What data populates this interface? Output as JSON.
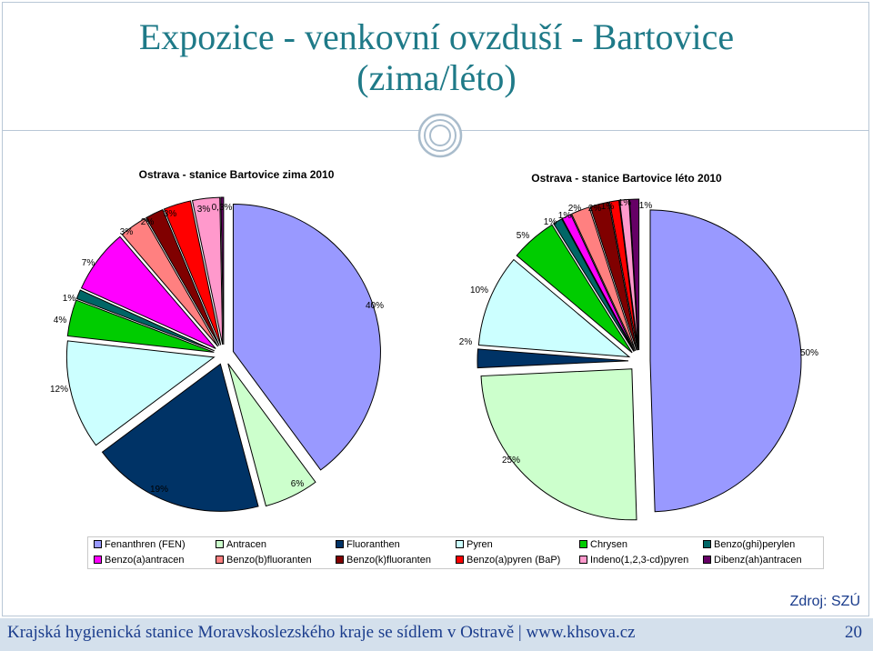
{
  "slide": {
    "title_line1": "Expozice - venkovní ovzduší - Bartovice",
    "title_line2": "(zima/léto)",
    "source": "Zdroj: SZÚ",
    "footer": "Krajská hygienická stanice Moravskoslezského kraje se sídlem v Ostravě | www.khsova.cz",
    "page_number": "20"
  },
  "legend": [
    {
      "label": "Fenanthren (FEN)",
      "color": "#9999ff"
    },
    {
      "label": "Antracen",
      "color": "#ccffcc"
    },
    {
      "label": "Fluoranthen",
      "color": "#003366"
    },
    {
      "label": "Pyren",
      "color": "#ccffff"
    },
    {
      "label": "Chrysen",
      "color": "#00cc00"
    },
    {
      "label": "Benzo(ghi)perylen",
      "color": "#006666"
    },
    {
      "label": "Benzo(a)antracen",
      "color": "#ff00ff"
    },
    {
      "label": "Benzo(b)fluoranten",
      "color": "#ff8080"
    },
    {
      "label": "Benzo(k)fluoranten",
      "color": "#800000"
    },
    {
      "label": "Benzo(a)pyren (BaP)",
      "color": "#ff0000"
    },
    {
      "label": "Indeno(1,2,3-cd)pyren",
      "color": "#ff99cc"
    },
    {
      "label": "Dibenz(ah)antracen",
      "color": "#660066"
    }
  ],
  "chart_data": [
    {
      "type": "pie",
      "title": "Ostrava - stanice Bartovice zima 2010",
      "categories": [
        "Fenanthren (FEN)",
        "Antracen",
        "Fluoranthen",
        "Pyren",
        "Chrysen",
        "Benzo(ghi)perylen",
        "Benzo(a)antracen",
        "Benzo(b)fluoranten",
        "Benzo(k)fluoranten",
        "Benzo(a)pyren (BaP)",
        "Indeno(1,2,3-cd)pyren",
        "Dibenz(ah)antracen"
      ],
      "values": [
        40,
        6,
        19,
        12,
        4,
        1,
        7,
        3,
        2,
        3,
        3,
        0.3
      ],
      "labels": [
        "40%",
        "6%",
        "19%",
        "12%",
        "4%",
        "1%",
        "7%",
        "3%",
        "2%",
        "3%",
        "3%",
        "0,3%"
      ],
      "exploded": true
    },
    {
      "type": "pie",
      "title": "Ostrava - stanice Bartovice léto 2010",
      "categories": [
        "Fenanthren (FEN)",
        "Antracen",
        "Fluoranthen",
        "Pyren",
        "Chrysen",
        "Benzo(ghi)perylen",
        "Benzo(a)antracen",
        "Benzo(b)fluoranten",
        "Benzo(k)fluoranten",
        "Benzo(a)pyren (BaP)",
        "Indeno(1,2,3-cd)pyren",
        "Dibenz(ah)antracen"
      ],
      "values": [
        50,
        25,
        2,
        10,
        5,
        1,
        1,
        2,
        2,
        1,
        1,
        1
      ],
      "labels": [
        "50%",
        "25%",
        "2%",
        "10%",
        "5%",
        "1%",
        "1%",
        "2%",
        "2%",
        "1%",
        "1%",
        "1%"
      ],
      "exploded": true
    }
  ]
}
